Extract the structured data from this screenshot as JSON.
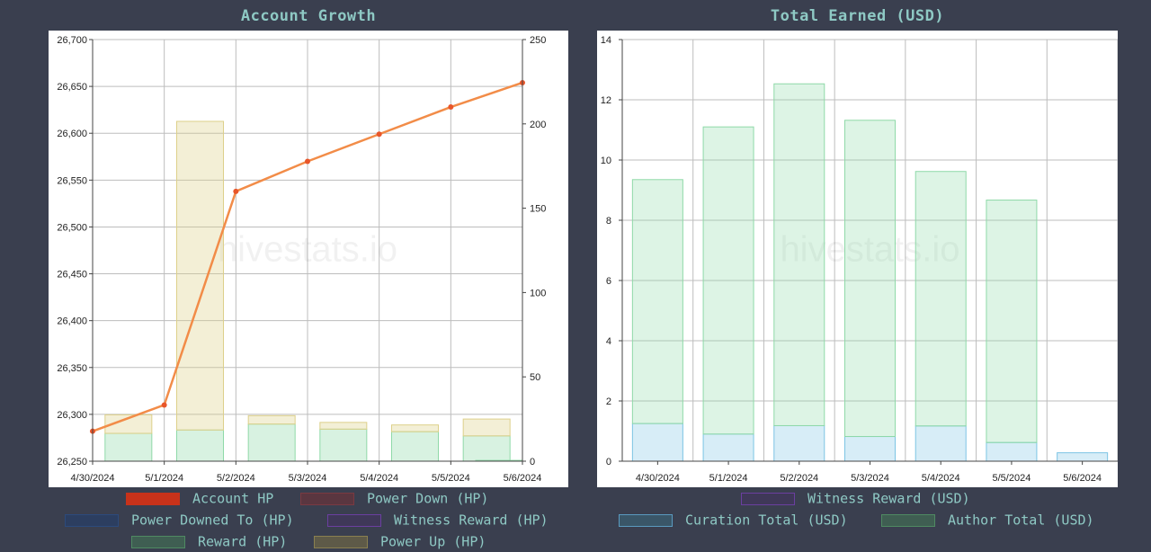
{
  "watermark": "hivestats.io",
  "chart_data": [
    {
      "type": "bar",
      "title": "Account Growth",
      "categories": [
        "4/30/2024",
        "5/1/2024",
        "5/2/2024",
        "5/3/2024",
        "5/4/2024",
        "5/5/2024",
        "5/6/2024"
      ],
      "y_left": {
        "range": [
          26250,
          26700
        ],
        "ticks": [
          26250,
          26300,
          26350,
          26400,
          26450,
          26500,
          26550,
          26600,
          26650,
          26700
        ],
        "tick_labels": [
          "26,250",
          "26,300",
          "26,350",
          "26,400",
          "26,450",
          "26,500",
          "26,550",
          "26,600",
          "26,650",
          "26,700"
        ]
      },
      "y_right": {
        "range": [
          0,
          250
        ],
        "ticks": [
          0,
          50,
          100,
          150,
          200,
          250
        ],
        "tick_labels": [
          "0",
          "50",
          "100",
          "150",
          "200",
          "250"
        ]
      },
      "grid": true,
      "legend_position": "bottom",
      "series": [
        {
          "name": "Account HP",
          "type": "line",
          "axis": "left",
          "color": "#f28c48",
          "legend_color": "#c8321a",
          "values": [
            26282,
            26310,
            26538,
            26570,
            26599,
            26628,
            26654
          ]
        },
        {
          "name": "Power Down (HP)",
          "type": "bar",
          "axis": "right",
          "color": "#7a3a42",
          "values": [
            0,
            0,
            0,
            0,
            0,
            0,
            0
          ]
        },
        {
          "name": "Power Downed To (HP)",
          "type": "bar",
          "axis": "right",
          "color": "#2c4a7c",
          "values": [
            0,
            0,
            0,
            0,
            0,
            0,
            0
          ]
        },
        {
          "name": "Witness Reward (HP)",
          "type": "bar",
          "axis": "right",
          "color": "#6b3fa0",
          "values": [
            0,
            0,
            0,
            0,
            0,
            0,
            0
          ]
        },
        {
          "name": "Reward (HP)",
          "type": "bar",
          "axis": "right",
          "color": "#8fd9a8",
          "values": [
            16.5,
            18.5,
            22,
            19,
            17.5,
            15,
            0.5
          ]
        },
        {
          "name": "Power Up (HP)",
          "type": "bar",
          "axis": "right",
          "color": "#ddd08a",
          "values": [
            11,
            183,
            5,
            4,
            4,
            10,
            0
          ]
        }
      ]
    },
    {
      "type": "bar",
      "title": "Total Earned (USD)",
      "categories": [
        "4/30/2024",
        "5/1/2024",
        "5/2/2024",
        "5/3/2024",
        "5/4/2024",
        "5/5/2024",
        "5/6/2024"
      ],
      "y": {
        "range": [
          0,
          14
        ],
        "ticks": [
          0,
          2,
          4,
          6,
          8,
          10,
          12,
          14
        ],
        "tick_labels": [
          "0",
          "2",
          "4",
          "6",
          "8",
          "10",
          "12",
          "14"
        ]
      },
      "grid": true,
      "legend_position": "bottom",
      "series": [
        {
          "name": "Witness Reward (USD)",
          "color": "#6b3fa0",
          "values": [
            0,
            0,
            0,
            0,
            0,
            0,
            0
          ]
        },
        {
          "name": "Curation Total (USD)",
          "color": "#7cc4e4",
          "values": [
            1.25,
            0.9,
            1.18,
            0.82,
            1.17,
            0.62,
            0.28
          ]
        },
        {
          "name": "Author Total (USD)",
          "color": "#8fd9a8",
          "values": [
            8.1,
            10.2,
            11.35,
            10.5,
            8.45,
            8.05,
            0
          ]
        }
      ]
    }
  ]
}
